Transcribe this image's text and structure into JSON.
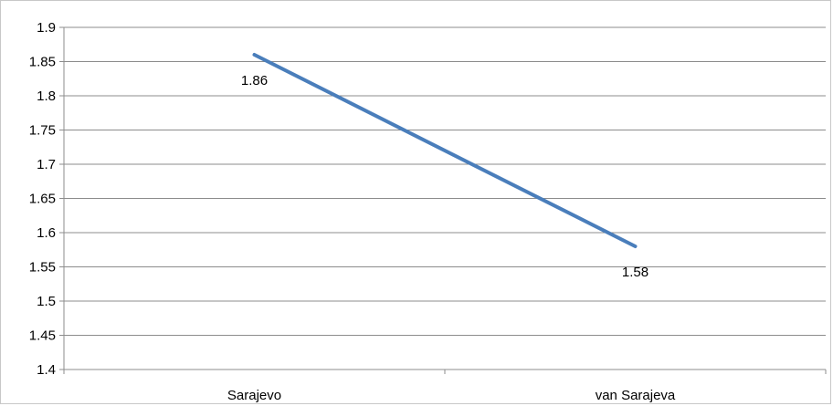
{
  "chart_data": {
    "type": "line",
    "title": "",
    "xlabel": "",
    "ylabel": "",
    "categories": [
      "Sarajevo",
      "van Sarajeva"
    ],
    "series": [
      {
        "values": [
          1.86,
          1.58
        ],
        "data_labels": [
          "1.86",
          "1.58"
        ],
        "color": "#4a7ebb"
      }
    ],
    "ylim": [
      1.4,
      1.9
    ],
    "yticks": [
      "1.4",
      "1.45",
      "1.5",
      "1.55",
      "1.6",
      "1.65",
      "1.7",
      "1.75",
      "1.8",
      "1.85",
      "1.9"
    ],
    "grid": true,
    "legend": "none",
    "colors": {
      "line": "#4a7ebb",
      "grid": "#8c8c8c",
      "axis": "#8c8c8c"
    }
  }
}
